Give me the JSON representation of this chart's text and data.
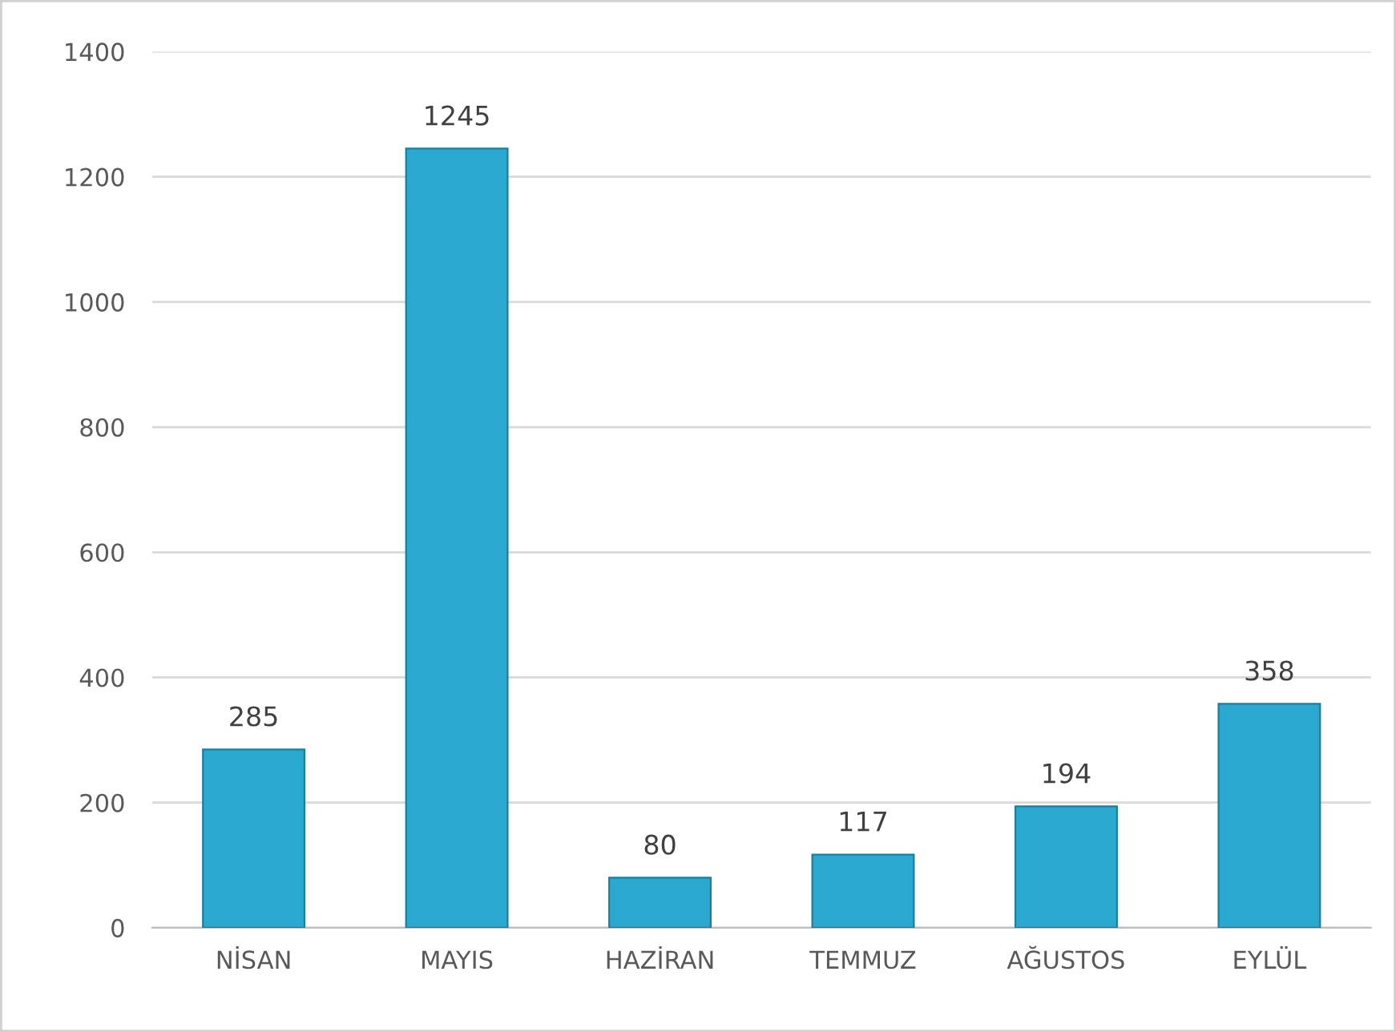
{
  "chart_data": {
    "type": "bar",
    "categories": [
      "NİSAN",
      "MAYIS",
      "HAZİRAN",
      "TEMMUZ",
      "AĞUSTOS",
      "EYLÜL"
    ],
    "values": [
      285,
      1245,
      80,
      117,
      194,
      358
    ],
    "color": "#2ba8cf",
    "ylim": [
      0,
      1400
    ],
    "yticks": [
      0,
      200,
      400,
      600,
      800,
      1000,
      1200,
      1400
    ],
    "grid": "y",
    "data_labels": true
  }
}
